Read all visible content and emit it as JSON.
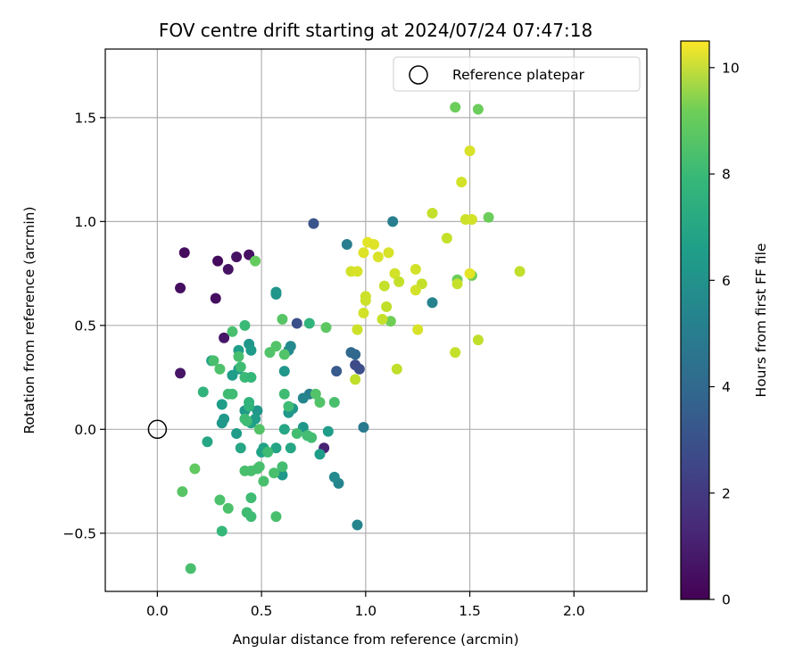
{
  "chart_data": {
    "type": "scatter",
    "title": "FOV centre drift starting at 2024/07/24 07:47:18",
    "xlabel": "Angular distance from reference (arcmin)",
    "ylabel": "Rotation from reference (arcmin)",
    "xlim": [
      -0.25,
      2.35
    ],
    "ylim": [
      -0.78,
      1.83
    ],
    "x_ticks": [
      0.0,
      0.5,
      1.0,
      1.5,
      2.0
    ],
    "x_tick_labels": [
      "0.0",
      "0.5",
      "1.0",
      "1.5",
      "2.0"
    ],
    "y_ticks": [
      -0.5,
      0.0,
      0.5,
      1.0,
      1.5
    ],
    "y_tick_labels": [
      "−0.5",
      "0.0",
      "0.5",
      "1.0",
      "1.5"
    ],
    "grid": true,
    "legend": {
      "position": "top-right",
      "entries": [
        {
          "label": "Reference platepar",
          "marker": "open-circle"
        }
      ]
    },
    "reference_point": {
      "x": 0.0,
      "y": 0.0
    },
    "colorbar": {
      "label": "Hours from first FF file",
      "colormap": "viridis",
      "range": [
        0,
        10.5
      ],
      "ticks": [
        0,
        2,
        4,
        6,
        8,
        10
      ],
      "tick_labels": [
        "0",
        "2",
        "4",
        "6",
        "8",
        "10"
      ]
    },
    "points": [
      {
        "x": 0.13,
        "y": 0.85,
        "h": 0.3
      },
      {
        "x": 0.29,
        "y": 0.81,
        "h": 0.3
      },
      {
        "x": 0.38,
        "y": 0.83,
        "h": 0.5
      },
      {
        "x": 0.44,
        "y": 0.84,
        "h": 0.5
      },
      {
        "x": 0.34,
        "y": 0.77,
        "h": 0.5
      },
      {
        "x": 0.11,
        "y": 0.68,
        "h": 0.4
      },
      {
        "x": 0.28,
        "y": 0.63,
        "h": 0.4
      },
      {
        "x": 0.32,
        "y": 0.44,
        "h": 0.6
      },
      {
        "x": 0.11,
        "y": 0.27,
        "h": 0.6
      },
      {
        "x": 0.8,
        "y": -0.09,
        "h": 1.0
      },
      {
        "x": 0.75,
        "y": 0.99,
        "h": 2.8
      },
      {
        "x": 0.67,
        "y": 0.51,
        "h": 2.6
      },
      {
        "x": 0.95,
        "y": 0.31,
        "h": 2.4
      },
      {
        "x": 0.97,
        "y": 0.29,
        "h": 2.5
      },
      {
        "x": 0.86,
        "y": 0.28,
        "h": 3.0
      },
      {
        "x": 0.93,
        "y": 0.37,
        "h": 3.5
      },
      {
        "x": 0.95,
        "y": 0.36,
        "h": 3.5
      },
      {
        "x": 0.91,
        "y": 0.89,
        "h": 4.5
      },
      {
        "x": 1.13,
        "y": 1.0,
        "h": 4.5
      },
      {
        "x": 1.32,
        "y": 0.61,
        "h": 4.7
      },
      {
        "x": 0.99,
        "y": 0.01,
        "h": 4.3
      },
      {
        "x": 0.96,
        "y": -0.46,
        "h": 4.8
      },
      {
        "x": 0.87,
        "y": -0.26,
        "h": 4.8
      },
      {
        "x": 0.85,
        "y": -0.23,
        "h": 5.0
      },
      {
        "x": 0.73,
        "y": 0.17,
        "h": 4.5
      },
      {
        "x": 0.7,
        "y": 0.15,
        "h": 4.8
      },
      {
        "x": 0.64,
        "y": 0.4,
        "h": 5.0
      },
      {
        "x": 0.63,
        "y": 0.38,
        "h": 5.0
      },
      {
        "x": 0.57,
        "y": 0.65,
        "h": 5.4
      },
      {
        "x": 0.57,
        "y": 0.66,
        "h": 5.5
      },
      {
        "x": 0.61,
        "y": 0.28,
        "h": 5.5
      },
      {
        "x": 0.6,
        "y": -0.22,
        "h": 5.6
      },
      {
        "x": 0.65,
        "y": 0.1,
        "h": 5.5
      },
      {
        "x": 0.63,
        "y": 0.08,
        "h": 5.6
      },
      {
        "x": 0.7,
        "y": 0.01,
        "h": 5.5
      },
      {
        "x": 0.82,
        "y": -0.01,
        "h": 5.8
      },
      {
        "x": 0.78,
        "y": -0.12,
        "h": 5.8
      },
      {
        "x": 0.72,
        "y": -0.03,
        "h": 5.6
      },
      {
        "x": 0.48,
        "y": 0.09,
        "h": 5.5
      },
      {
        "x": 0.42,
        "y": 0.09,
        "h": 5.6
      },
      {
        "x": 0.39,
        "y": 0.38,
        "h": 5.9
      },
      {
        "x": 0.44,
        "y": 0.41,
        "h": 5.5
      },
      {
        "x": 0.45,
        "y": 0.38,
        "h": 5.7
      },
      {
        "x": 0.36,
        "y": 0.26,
        "h": 5.8
      },
      {
        "x": 0.39,
        "y": 0.29,
        "h": 5.8
      },
      {
        "x": 0.26,
        "y": 0.33,
        "h": 6.0
      },
      {
        "x": 0.31,
        "y": 0.12,
        "h": 5.8
      },
      {
        "x": 0.32,
        "y": 0.05,
        "h": 5.6
      },
      {
        "x": 0.31,
        "y": 0.03,
        "h": 5.6
      },
      {
        "x": 0.38,
        "y": -0.02,
        "h": 5.8
      },
      {
        "x": 0.45,
        "y": 0.03,
        "h": 6.0
      },
      {
        "x": 0.47,
        "y": 0.05,
        "h": 5.8
      },
      {
        "x": 0.51,
        "y": -0.09,
        "h": 6.0
      },
      {
        "x": 0.5,
        "y": -0.11,
        "h": 6.0
      },
      {
        "x": 0.57,
        "y": -0.09,
        "h": 6.1
      },
      {
        "x": 0.64,
        "y": -0.09,
        "h": 6.2
      },
      {
        "x": 0.61,
        "y": 0.0,
        "h": 6.2
      },
      {
        "x": 0.24,
        "y": -0.06,
        "h": 6.2
      },
      {
        "x": 0.4,
        "y": -0.09,
        "h": 6.2
      },
      {
        "x": 0.22,
        "y": 0.18,
        "h": 6.8
      },
      {
        "x": 0.44,
        "y": 0.13,
        "h": 6.8
      },
      {
        "x": 0.44,
        "y": 0.11,
        "h": 6.8
      },
      {
        "x": 0.34,
        "y": 0.17,
        "h": 7.2
      },
      {
        "x": 0.36,
        "y": 0.17,
        "h": 7.2
      },
      {
        "x": 0.42,
        "y": 0.25,
        "h": 7.1
      },
      {
        "x": 0.45,
        "y": 0.25,
        "h": 7.0
      },
      {
        "x": 0.4,
        "y": 0.3,
        "h": 7.2
      },
      {
        "x": 0.39,
        "y": 0.35,
        "h": 7.4
      },
      {
        "x": 0.36,
        "y": 0.47,
        "h": 7.4
      },
      {
        "x": 0.42,
        "y": 0.5,
        "h": 7.1
      },
      {
        "x": 0.27,
        "y": 0.33,
        "h": 7.4
      },
      {
        "x": 0.3,
        "y": 0.29,
        "h": 7.5
      },
      {
        "x": 0.42,
        "y": 0.05,
        "h": 7.2
      },
      {
        "x": 0.43,
        "y": 0.04,
        "h": 7.2
      },
      {
        "x": 0.49,
        "y": 0.0,
        "h": 7.6
      },
      {
        "x": 0.57,
        "y": 0.4,
        "h": 7.6
      },
      {
        "x": 0.54,
        "y": 0.37,
        "h": 7.6
      },
      {
        "x": 0.61,
        "y": 0.36,
        "h": 7.6
      },
      {
        "x": 0.6,
        "y": 0.53,
        "h": 7.7
      },
      {
        "x": 0.73,
        "y": 0.51,
        "h": 6.8
      },
      {
        "x": 0.81,
        "y": 0.49,
        "h": 7.8
      },
      {
        "x": 0.76,
        "y": 0.17,
        "h": 7.6
      },
      {
        "x": 0.78,
        "y": 0.13,
        "h": 7.6
      },
      {
        "x": 0.85,
        "y": 0.13,
        "h": 7.4
      },
      {
        "x": 0.61,
        "y": 0.17,
        "h": 7.2
      },
      {
        "x": 0.63,
        "y": 0.11,
        "h": 7.2
      },
      {
        "x": 0.67,
        "y": -0.02,
        "h": 7.3
      },
      {
        "x": 0.72,
        "y": -0.03,
        "h": 7.3
      },
      {
        "x": 0.74,
        "y": -0.04,
        "h": 7.3
      },
      {
        "x": 0.53,
        "y": -0.11,
        "h": 7.2
      },
      {
        "x": 0.49,
        "y": -0.18,
        "h": 7.4
      },
      {
        "x": 0.48,
        "y": -0.19,
        "h": 7.4
      },
      {
        "x": 0.56,
        "y": -0.21,
        "h": 7.4
      },
      {
        "x": 0.51,
        "y": -0.25,
        "h": 7.4
      },
      {
        "x": 0.6,
        "y": -0.18,
        "h": 7.3
      },
      {
        "x": 0.42,
        "y": -0.2,
        "h": 7.4
      },
      {
        "x": 0.45,
        "y": -0.2,
        "h": 7.4
      },
      {
        "x": 0.45,
        "y": -0.33,
        "h": 7.2
      },
      {
        "x": 0.43,
        "y": -0.4,
        "h": 7.2
      },
      {
        "x": 0.45,
        "y": -0.42,
        "h": 7.2
      },
      {
        "x": 0.57,
        "y": -0.42,
        "h": 7.4
      },
      {
        "x": 0.34,
        "y": -0.38,
        "h": 7.5
      },
      {
        "x": 0.3,
        "y": -0.34,
        "h": 7.5
      },
      {
        "x": 0.31,
        "y": -0.49,
        "h": 7.0
      },
      {
        "x": 0.16,
        "y": -0.67,
        "h": 7.4
      },
      {
        "x": 0.12,
        "y": -0.3,
        "h": 7.7
      },
      {
        "x": 0.18,
        "y": -0.19,
        "h": 7.9
      },
      {
        "x": 0.47,
        "y": 0.81,
        "h": 8.0
      },
      {
        "x": 1.43,
        "y": 1.55,
        "h": 8.1
      },
      {
        "x": 1.54,
        "y": 1.54,
        "h": 8.1
      },
      {
        "x": 1.59,
        "y": 1.02,
        "h": 8.1
      },
      {
        "x": 1.44,
        "y": 0.72,
        "h": 8.1
      },
      {
        "x": 1.51,
        "y": 0.74,
        "h": 8.2
      },
      {
        "x": 1.12,
        "y": 0.52,
        "h": 8.2
      },
      {
        "x": 1.5,
        "y": 1.34,
        "h": 9.9
      },
      {
        "x": 1.46,
        "y": 1.19,
        "h": 9.8
      },
      {
        "x": 1.48,
        "y": 1.01,
        "h": 9.7
      },
      {
        "x": 1.51,
        "y": 1.01,
        "h": 9.8
      },
      {
        "x": 1.32,
        "y": 1.04,
        "h": 9.6
      },
      {
        "x": 1.39,
        "y": 0.92,
        "h": 9.6
      },
      {
        "x": 1.01,
        "y": 0.9,
        "h": 10.1
      },
      {
        "x": 1.04,
        "y": 0.89,
        "h": 10.0
      },
      {
        "x": 1.06,
        "y": 0.83,
        "h": 9.9
      },
      {
        "x": 0.99,
        "y": 0.85,
        "h": 10.0
      },
      {
        "x": 1.11,
        "y": 0.85,
        "h": 9.9
      },
      {
        "x": 1.14,
        "y": 0.75,
        "h": 9.8
      },
      {
        "x": 0.93,
        "y": 0.76,
        "h": 9.8
      },
      {
        "x": 0.96,
        "y": 0.76,
        "h": 9.9
      },
      {
        "x": 1.24,
        "y": 0.77,
        "h": 9.8
      },
      {
        "x": 1.5,
        "y": 0.75,
        "h": 10.1
      },
      {
        "x": 1.74,
        "y": 0.76,
        "h": 9.5
      },
      {
        "x": 1.16,
        "y": 0.71,
        "h": 9.6
      },
      {
        "x": 1.09,
        "y": 0.69,
        "h": 9.6
      },
      {
        "x": 1.27,
        "y": 0.7,
        "h": 9.6
      },
      {
        "x": 1.24,
        "y": 0.67,
        "h": 9.8
      },
      {
        "x": 1.44,
        "y": 0.7,
        "h": 9.6
      },
      {
        "x": 1.0,
        "y": 0.64,
        "h": 9.7
      },
      {
        "x": 1.0,
        "y": 0.62,
        "h": 9.7
      },
      {
        "x": 0.99,
        "y": 0.56,
        "h": 9.8
      },
      {
        "x": 1.1,
        "y": 0.59,
        "h": 9.5
      },
      {
        "x": 1.08,
        "y": 0.53,
        "h": 9.6
      },
      {
        "x": 1.25,
        "y": 0.48,
        "h": 9.9
      },
      {
        "x": 0.96,
        "y": 0.48,
        "h": 9.7
      },
      {
        "x": 1.54,
        "y": 0.43,
        "h": 9.5
      },
      {
        "x": 1.43,
        "y": 0.37,
        "h": 9.6
      },
      {
        "x": 1.15,
        "y": 0.29,
        "h": 9.5
      },
      {
        "x": 0.95,
        "y": 0.24,
        "h": 9.5
      }
    ]
  }
}
